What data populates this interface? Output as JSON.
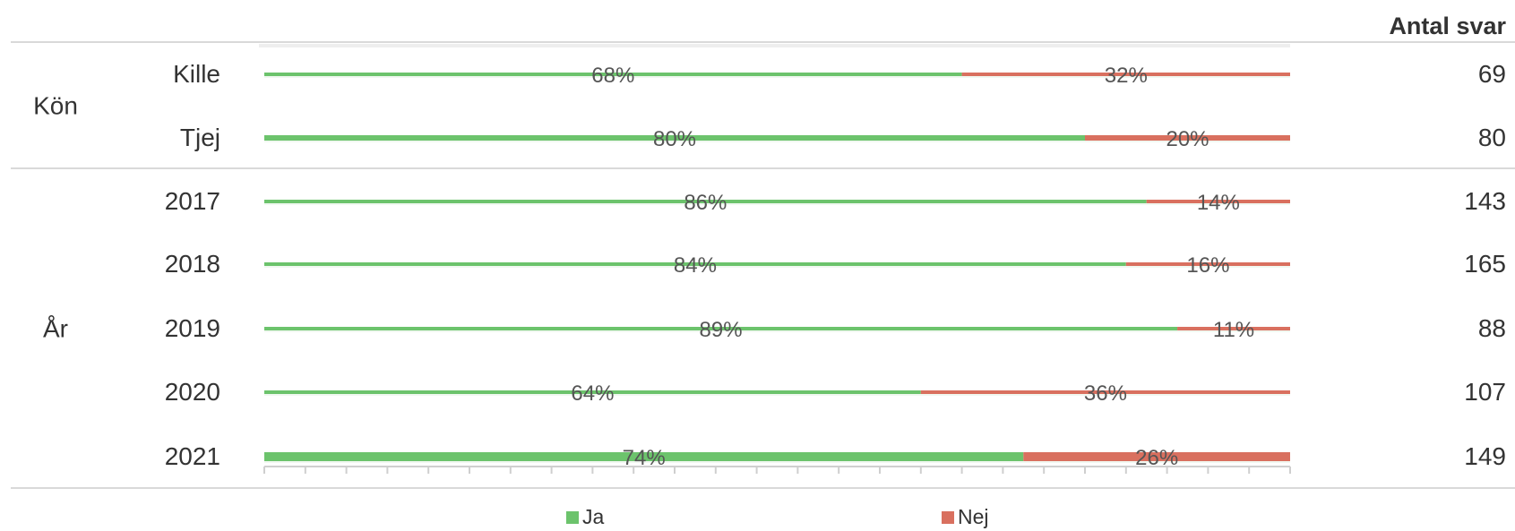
{
  "chart_data": {
    "type": "bar",
    "orientation": "horizontal",
    "stacked": true,
    "normalized": true,
    "header": {
      "count_label": "Antal svar"
    },
    "groups": [
      {
        "label": "Kön",
        "categories": [
          "Kille",
          "Tjej"
        ]
      },
      {
        "label": "År",
        "categories": [
          "2017",
          "2018",
          "2019",
          "2020",
          "2021"
        ]
      }
    ],
    "categories": [
      "Kille",
      "Tjej",
      "2017",
      "2018",
      "2019",
      "2020",
      "2021"
    ],
    "series": [
      {
        "name": "Ja",
        "color": "#6cc36c",
        "values": [
          68,
          80,
          86,
          84,
          89,
          64,
          74
        ],
        "labels": [
          "68%",
          "80%",
          "86%",
          "84%",
          "89%",
          "64%",
          "74%"
        ]
      },
      {
        "name": "Nej",
        "color": "#d9705f",
        "values": [
          32,
          20,
          14,
          16,
          11,
          36,
          26
        ],
        "labels": [
          "32%",
          "20%",
          "14%",
          "16%",
          "11%",
          "36%",
          "26%"
        ]
      }
    ],
    "counts": [
      "69",
      "80",
      "143",
      "165",
      "88",
      "107",
      "149"
    ],
    "xlim": [
      0,
      100
    ],
    "legend_position": "bottom",
    "grid": false
  }
}
